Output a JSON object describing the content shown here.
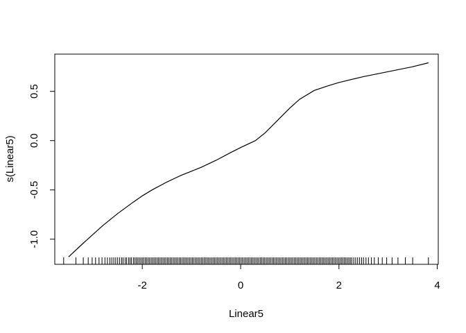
{
  "chart_data": {
    "type": "line",
    "title": "",
    "xlabel": "Linear5",
    "ylabel": "s(Linear5)",
    "xlim": [
      -3.78,
      4.02
    ],
    "ylim": [
      -1.255,
      0.878
    ],
    "x_ticks": [
      -2,
      0,
      2,
      4
    ],
    "x_tick_labels": [
      "-2",
      "0",
      "2",
      "4"
    ],
    "y_ticks": [
      -1.0,
      -0.5,
      0.0,
      0.5
    ],
    "y_tick_labels": [
      "-1.0",
      "-0.5",
      "0.0",
      "0.5"
    ],
    "grid": false,
    "series": [
      {
        "x": [
          -3.5,
          -3.2,
          -3.0,
          -2.8,
          -2.5,
          -2.2,
          -2.0,
          -1.8,
          -1.5,
          -1.2,
          -1.0,
          -0.8,
          -0.5,
          -0.2,
          0.0,
          0.3,
          0.5,
          0.7,
          1.0,
          1.2,
          1.5,
          1.8,
          2.0,
          2.5,
          3.0,
          3.5,
          3.82
        ],
        "y": [
          -1.18,
          -1.04,
          -0.95,
          -0.86,
          -0.74,
          -0.63,
          -0.56,
          -0.5,
          -0.42,
          -0.35,
          -0.31,
          -0.27,
          -0.2,
          -0.12,
          -0.07,
          0.0,
          0.08,
          0.18,
          0.33,
          0.42,
          0.51,
          0.56,
          0.59,
          0.65,
          0.7,
          0.75,
          0.79
        ]
      }
    ],
    "rug": [
      -3.6,
      -3.35,
      -3.2,
      -3.1,
      -3.02,
      -2.95,
      -2.88,
      -2.82,
      -2.76,
      -2.71,
      -2.66,
      -2.62,
      -2.58,
      -2.54,
      -2.5,
      -2.46,
      -2.42,
      -2.39,
      -2.35,
      -2.32,
      -2.28,
      -2.25,
      -2.22,
      -2.18,
      -2.15,
      -2.12,
      -2.09,
      -2.06,
      -2.03,
      -2.0,
      -1.97,
      -1.94,
      -1.91,
      -1.88,
      -1.85,
      -1.82,
      -1.79,
      -1.76,
      -1.73,
      -1.7,
      -1.67,
      -1.64,
      -1.61,
      -1.58,
      -1.55,
      -1.52,
      -1.49,
      -1.46,
      -1.43,
      -1.4,
      -1.37,
      -1.34,
      -1.31,
      -1.28,
      -1.25,
      -1.22,
      -1.19,
      -1.16,
      -1.13,
      -1.1,
      -1.07,
      -1.04,
      -1.01,
      -0.98,
      -0.95,
      -0.92,
      -0.89,
      -0.86,
      -0.83,
      -0.8,
      -0.77,
      -0.74,
      -0.71,
      -0.68,
      -0.65,
      -0.62,
      -0.59,
      -0.56,
      -0.53,
      -0.5,
      -0.47,
      -0.44,
      -0.41,
      -0.38,
      -0.35,
      -0.32,
      -0.29,
      -0.26,
      -0.23,
      -0.2,
      -0.17,
      -0.14,
      -0.11,
      -0.08,
      -0.05,
      -0.02,
      0.01,
      0.04,
      0.07,
      0.1,
      0.13,
      0.16,
      0.19,
      0.22,
      0.25,
      0.28,
      0.31,
      0.34,
      0.37,
      0.4,
      0.43,
      0.46,
      0.49,
      0.52,
      0.55,
      0.58,
      0.61,
      0.64,
      0.67,
      0.7,
      0.73,
      0.76,
      0.79,
      0.82,
      0.85,
      0.88,
      0.91,
      0.94,
      0.97,
      1.0,
      1.03,
      1.06,
      1.09,
      1.12,
      1.15,
      1.18,
      1.21,
      1.24,
      1.27,
      1.3,
      1.33,
      1.36,
      1.39,
      1.42,
      1.45,
      1.48,
      1.51,
      1.54,
      1.57,
      1.6,
      1.63,
      1.66,
      1.69,
      1.72,
      1.75,
      1.78,
      1.81,
      1.84,
      1.87,
      1.9,
      1.93,
      1.96,
      1.99,
      2.02,
      2.05,
      2.08,
      2.11,
      2.14,
      2.17,
      2.2,
      2.23,
      2.26,
      2.3,
      2.34,
      2.38,
      2.42,
      2.46,
      2.5,
      2.55,
      2.6,
      2.66,
      2.72,
      2.8,
      2.88,
      2.97,
      3.08,
      3.2,
      3.35,
      3.5,
      3.82
    ]
  }
}
